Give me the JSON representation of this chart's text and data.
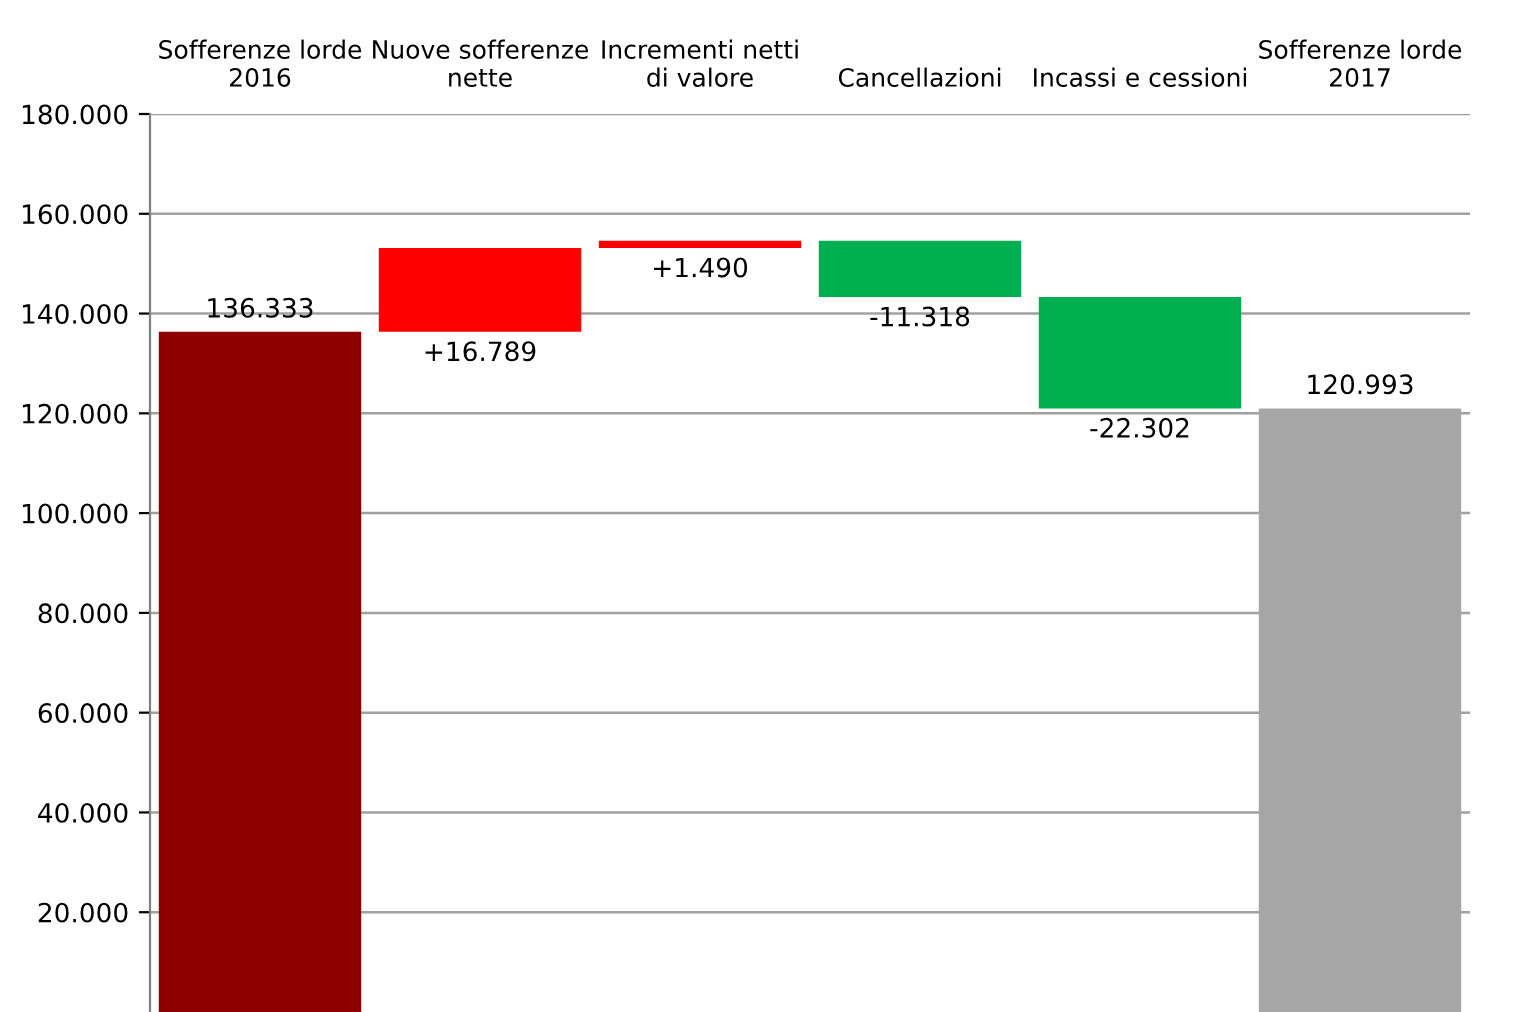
{
  "chart_data": {
    "type": "bar",
    "categories": [
      "Sofferenze lorde\n2016",
      "Nuove sofferenze\nnette",
      "Incrementi netti\ndi valore",
      "Cancellazioni",
      "Incassi e cessioni",
      "Sofferenze lorde\n2017"
    ],
    "values": [
      136333,
      16789,
      1490,
      -11318,
      -22302,
      120993
    ],
    "base": [
      0,
      136333,
      153122,
      154612,
      143294,
      0
    ],
    "colors": [
      "#8e0000",
      "#ff0000",
      "#ff0000",
      "#00b050",
      "#00b050",
      "#a6a6a6"
    ],
    "value_labels": [
      "136.333",
      "+16.789",
      "+1.490",
      "-11.318",
      "-22.302",
      "120.993"
    ],
    "ylim": [
      0,
      180000
    ],
    "yticks": [
      {
        "value": 20000,
        "label": "20.000"
      },
      {
        "value": 40000,
        "label": "40.000"
      },
      {
        "value": 60000,
        "label": "60.000"
      },
      {
        "value": 80000,
        "label": "80.000"
      },
      {
        "value": 100000,
        "label": "100.000"
      },
      {
        "value": 120000,
        "label": "120.000"
      },
      {
        "value": 140000,
        "label": "140.000"
      },
      {
        "value": 160000,
        "label": "160.000"
      },
      {
        "value": 180000,
        "label": "180.000"
      }
    ],
    "grid": "y"
  }
}
